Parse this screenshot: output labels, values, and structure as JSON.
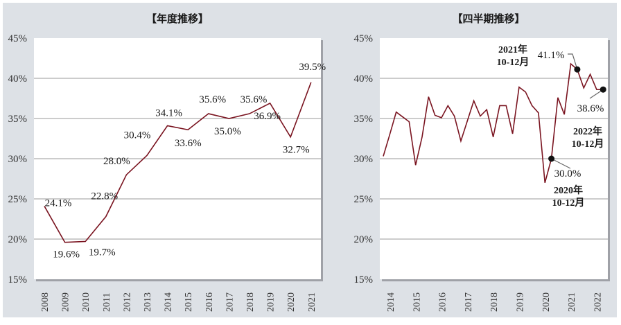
{
  "chart_data": [
    {
      "type": "line",
      "title": "【年度推移】",
      "xlabel": "",
      "ylabel": "",
      "ylim": [
        15,
        45
      ],
      "yticks": [
        "15%",
        "20%",
        "25%",
        "30%",
        "35%",
        "40%",
        "45%"
      ],
      "grid": true,
      "legend": null,
      "line_color": "#7a1420",
      "categories": [
        "2008",
        "2009",
        "2010",
        "2011",
        "2012",
        "2013",
        "2014",
        "2015",
        "2016",
        "2017",
        "2018",
        "2019",
        "2020",
        "2021"
      ],
      "values": [
        24.1,
        19.6,
        19.7,
        22.8,
        28.0,
        30.4,
        34.1,
        33.6,
        35.6,
        35.0,
        35.6,
        36.9,
        32.7,
        39.5
      ],
      "data_labels": [
        "24.1%",
        "19.6%",
        "19.7%",
        "22.8%",
        "28.0%",
        "30.4%",
        "34.1%",
        "33.6%",
        "35.6%",
        "35.0%",
        "35.6%",
        "36.9%",
        "32.7%",
        "39.5%"
      ]
    },
    {
      "type": "line",
      "title": "【四半期推移】",
      "xlabel": "",
      "ylabel": "",
      "ylim": [
        15,
        45
      ],
      "yticks": [
        "15%",
        "20%",
        "25%",
        "30%",
        "35%",
        "40%",
        "45%"
      ],
      "grid": true,
      "legend": null,
      "line_color": "#7a1420",
      "categories": [
        "2014",
        "2015",
        "2016",
        "2017",
        "2018",
        "2019",
        "2020",
        "2021",
        "2022"
      ],
      "x_note": "quarterly points from 2014 Q2 to 2022 Q4 (approximate, read from plot)",
      "values": [
        30.3,
        33.0,
        35.8,
        35.2,
        34.6,
        29.2,
        32.7,
        37.7,
        35.4,
        35.1,
        36.6,
        35.3,
        32.2,
        34.7,
        37.2,
        35.3,
        36.1,
        32.7,
        36.6,
        36.6,
        33.1,
        38.9,
        38.3,
        36.6,
        35.7,
        27.0,
        30.0,
        37.6,
        35.5,
        41.8,
        41.1,
        38.8,
        40.5,
        38.6,
        38.6
      ],
      "annotations": [
        {
          "label": "30.0%",
          "period": "2020年\n10-12月",
          "index": 26
        },
        {
          "label": "41.1%",
          "period": "2021年\n10-12月",
          "index": 30
        },
        {
          "label": "38.6%",
          "period": "2022年\n10-12月",
          "index": 34
        }
      ]
    }
  ],
  "left": {
    "title": "【年度推移】"
  },
  "right": {
    "title": "【四半期推移】",
    "ann_2021_year": "2021年",
    "ann_2021_period": "10-12月",
    "ann_2021_value": "41.1%",
    "ann_2022_year": "2022年",
    "ann_2022_period": "10-12月",
    "ann_2022_value": "38.6%",
    "ann_2020_year": "2020年",
    "ann_2020_period": "10-12月",
    "ann_2020_value": "30.0%"
  }
}
